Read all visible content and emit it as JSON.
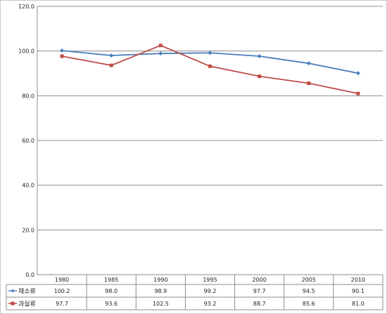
{
  "chart_data": {
    "type": "line",
    "categories": [
      "1980",
      "1985",
      "1990",
      "1995",
      "2000",
      "2005",
      "2010"
    ],
    "series": [
      {
        "name": "채소류",
        "values": [
          100.2,
          98.0,
          98.9,
          99.2,
          97.7,
          94.5,
          90.1
        ],
        "value_labels": [
          "100.2",
          "98.0",
          "98.9",
          "99.2",
          "97.7",
          "94.5",
          "90.1"
        ],
        "color": "#4a7ebb",
        "marker": "diamond"
      },
      {
        "name": "과실류",
        "values": [
          97.7,
          93.6,
          102.5,
          93.2,
          88.7,
          85.6,
          81.0
        ],
        "value_labels": [
          "97.7",
          "93.6",
          "102.5",
          "93.2",
          "88.7",
          "85.6",
          "81.0"
        ],
        "color": "#be4b48",
        "marker": "square"
      }
    ],
    "yticks": [
      "0.0",
      "20.0",
      "40.0",
      "60.0",
      "80.0",
      "100.0",
      "120.0"
    ],
    "ylim": [
      0,
      120
    ],
    "grid": true,
    "legend": "data-table-left",
    "title": "",
    "xlabel": "",
    "ylabel": ""
  }
}
